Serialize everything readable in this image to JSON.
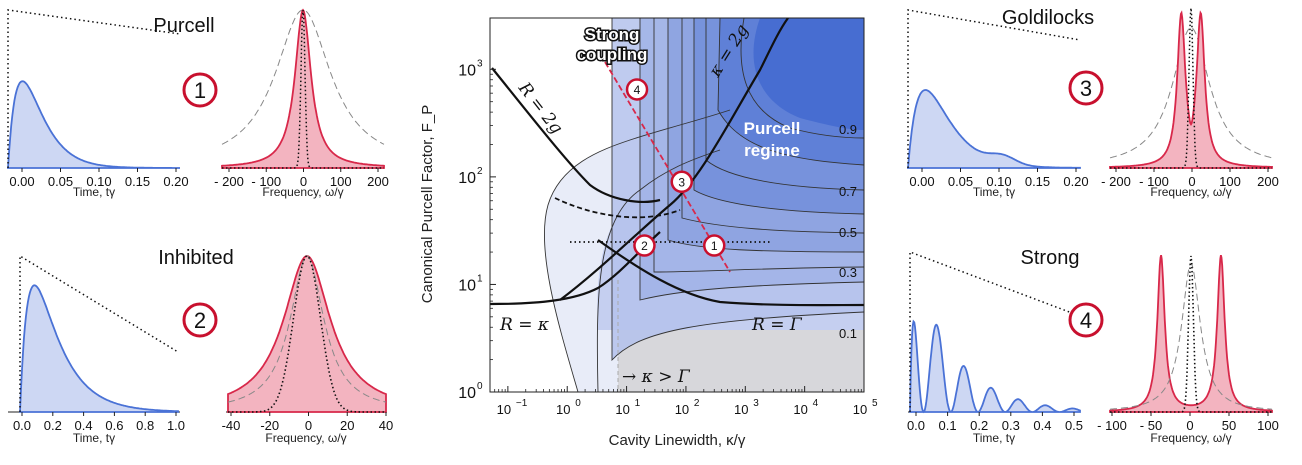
{
  "colors": {
    "blue": "#4a72d6",
    "blue_fill": "#cdd7f3",
    "red": "#d8284a",
    "red_fill": "#f3b4c0",
    "badge": "#c8102e",
    "bg_gray": "#dddddd"
  },
  "chart_data": [
    {
      "type": "area",
      "panel": "purcell-time",
      "title": "Purcell",
      "badge": "1",
      "xlabel": "Time, tγ",
      "xlim": [
        0,
        0.2
      ],
      "xticks": [
        "0.00",
        "0.05",
        "0.10",
        "0.15",
        "0.20"
      ]
    },
    {
      "type": "area",
      "panel": "purcell-freq",
      "xlabel": "Frequency, ω/γ",
      "xlim": [
        -200,
        200
      ],
      "xticks": [
        "- 200",
        "- 100",
        "0",
        "100",
        "200"
      ]
    },
    {
      "type": "area",
      "panel": "inhibited-time",
      "title": "Inhibited",
      "badge": "2",
      "xlabel": "Time, tγ",
      "xlim": [
        0,
        1
      ],
      "xticks": [
        "0.0",
        "0.2",
        "0.4",
        "0.6",
        "0.8",
        "1.0"
      ]
    },
    {
      "type": "area",
      "panel": "inhibited-freq",
      "xlabel": "Frequency, ω/γ",
      "xlim": [
        -40,
        40
      ],
      "xticks": [
        "-40",
        "-20",
        "0",
        "20",
        "40"
      ]
    },
    {
      "type": "heatmap",
      "panel": "main",
      "xlabel": "Cavity Linewidth, κ/γ",
      "ylabel": "Canonical Purcell Factor, F_P",
      "xscale": "log",
      "yscale": "log",
      "xlim": [
        0.05,
        100000
      ],
      "ylim": [
        1,
        3000
      ],
      "xticks": [
        "10",
        "10",
        "10",
        "10",
        "10",
        "10",
        "10"
      ],
      "xtick_exp": [
        "−1",
        "0",
        "1",
        "2",
        "3",
        "4",
        "5"
      ],
      "yticks": [
        "10",
        "10",
        "10",
        "10"
      ],
      "ytick_exp": [
        "0",
        "1",
        "2",
        "3"
      ],
      "contour_labels": [
        "0.9",
        "0.7",
        "0.5",
        "0.3",
        "0.1"
      ],
      "annotations": {
        "strong1": "Strong",
        "strong2": "coupling",
        "purcell1": "Purcell",
        "purcell2": "regime",
        "r2g": "R = 2g",
        "k2g": "κ = 2g",
        "rk": "R = κ",
        "rg": "R = Γ",
        "kgG": "→ κ > Γ"
      },
      "points": [
        {
          "label": "1",
          "x": 300,
          "y": 23
        },
        {
          "label": "2",
          "x": 20,
          "y": 23
        },
        {
          "label": "3",
          "x": 85,
          "y": 90
        },
        {
          "label": "4",
          "x": 15,
          "y": 650
        }
      ]
    },
    {
      "type": "area",
      "panel": "goldilocks-time",
      "title": "Goldilocks",
      "badge": "3",
      "xlabel": "Time, tγ",
      "xlim": [
        0,
        0.2
      ],
      "xticks": [
        "0.00",
        "0.05",
        "0.10",
        "0.15",
        "0.20"
      ]
    },
    {
      "type": "area",
      "panel": "goldilocks-freq",
      "xlabel": "Frequency, ω/γ",
      "xlim": [
        -200,
        200
      ],
      "xticks": [
        "- 200",
        "- 100",
        "0",
        "100",
        "200"
      ]
    },
    {
      "type": "area",
      "panel": "strong-time",
      "title": "Strong",
      "badge": "4",
      "xlabel": "Time, tγ",
      "xlim": [
        0,
        0.5
      ],
      "xticks": [
        "0.0",
        "0.1",
        "0.2",
        "0.3",
        "0.4",
        "0.5"
      ]
    },
    {
      "type": "area",
      "panel": "strong-freq",
      "xlabel": "Frequency, ω/γ",
      "xlim": [
        -100,
        100
      ],
      "xticks": [
        "- 100",
        "- 50",
        "0",
        "50",
        "100"
      ]
    }
  ]
}
